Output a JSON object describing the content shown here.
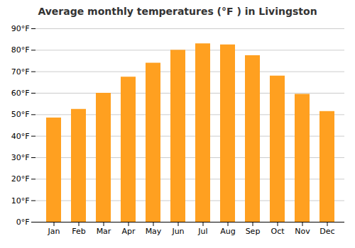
{
  "chart_data": {
    "type": "bar",
    "title": "Average monthly temperatures (°F ) in Livingston",
    "categories": [
      "Jan",
      "Feb",
      "Mar",
      "Apr",
      "May",
      "Jun",
      "Jul",
      "Aug",
      "Sep",
      "Oct",
      "Nov",
      "Dec"
    ],
    "values": [
      48.5,
      52.5,
      60.0,
      67.5,
      74.0,
      80.0,
      83.0,
      82.5,
      77.5,
      68.0,
      59.5,
      51.5
    ],
    "color": "#FFA020",
    "ylim": [
      0,
      90
    ],
    "yticks": [
      {
        "value": 0,
        "label": "0°F"
      },
      {
        "value": 10,
        "label": "10°F"
      },
      {
        "value": 20,
        "label": "20°F"
      },
      {
        "value": 30,
        "label": "30°F"
      },
      {
        "value": 40,
        "label": "40°F"
      },
      {
        "value": 50,
        "label": "50°F"
      },
      {
        "value": 60,
        "label": "60°F"
      },
      {
        "value": 70,
        "label": "70°F"
      },
      {
        "value": 80,
        "label": "80°F"
      },
      {
        "value": 90,
        "label": "90°F"
      }
    ],
    "grid": true
  }
}
